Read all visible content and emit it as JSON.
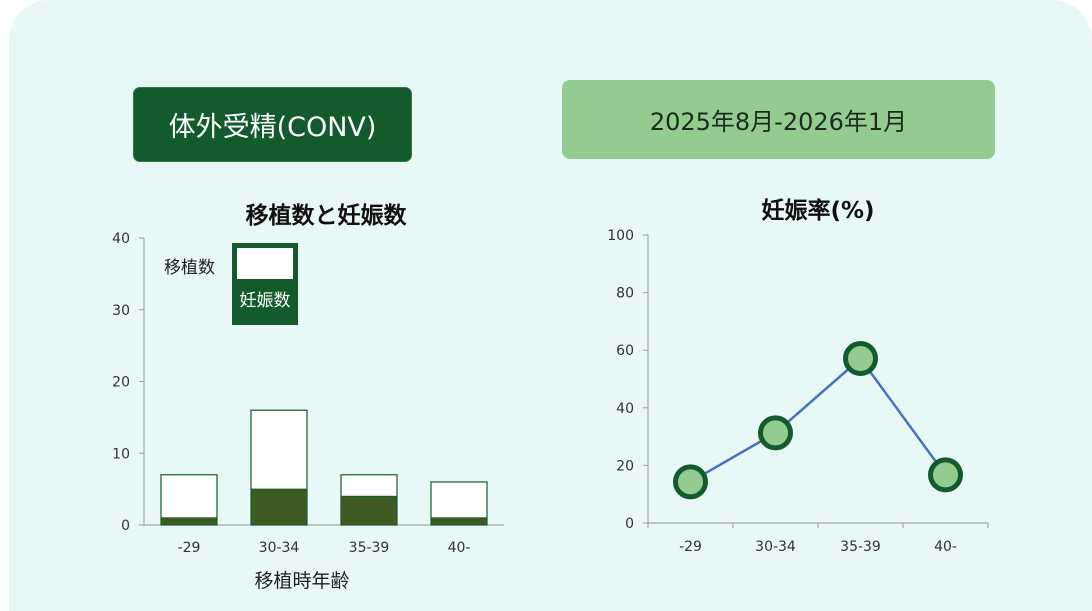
{
  "header": {
    "method_label": "体外受精(CONV)",
    "period_label": "2025年8月-2026年1月"
  },
  "colors": {
    "dark_green": "#135a2c",
    "bar_fill": "#3e5a22",
    "light_green": "#93cb91",
    "line_blue": "#4472c4"
  },
  "chart_data": [
    {
      "type": "bar",
      "title": "移植数と妊娠数",
      "xlabel": "移植時年齢",
      "ylabel": "",
      "categories": [
        "-29",
        "30-34",
        "35-39",
        "40-"
      ],
      "series": [
        {
          "name": "移植数",
          "values": [
            7,
            16,
            7,
            6
          ]
        },
        {
          "name": "妊娠数",
          "values": [
            1,
            5,
            4,
            1
          ]
        }
      ],
      "ylim": [
        0,
        40
      ],
      "yticks": [
        0,
        10,
        20,
        30,
        40
      ],
      "legend": "top-left"
    },
    {
      "type": "line",
      "title": "妊娠率(%)",
      "xlabel": "",
      "ylabel": "",
      "categories": [
        "-29",
        "30-34",
        "35-39",
        "40-"
      ],
      "values": [
        14.3,
        31.3,
        57.1,
        16.7
      ],
      "ylim": [
        0,
        100
      ],
      "yticks": [
        0,
        20,
        40,
        60,
        80,
        100
      ]
    }
  ]
}
